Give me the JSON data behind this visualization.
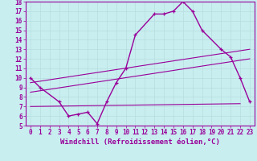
{
  "xlabel": "Windchill (Refroidissement éolien,°C)",
  "bg_color": "#c8eef0",
  "line_color": "#990099",
  "grid_color": "#b8dde0",
  "xlim": [
    -0.5,
    23.5
  ],
  "ylim": [
    5,
    18
  ],
  "xticks": [
    0,
    1,
    2,
    3,
    4,
    5,
    6,
    7,
    8,
    9,
    10,
    11,
    12,
    13,
    14,
    15,
    16,
    17,
    18,
    19,
    20,
    21,
    22,
    23
  ],
  "yticks": [
    5,
    6,
    7,
    8,
    9,
    10,
    11,
    12,
    13,
    14,
    15,
    16,
    17,
    18
  ],
  "main_x": [
    0,
    1,
    3,
    4,
    5,
    6,
    7,
    8,
    9,
    10,
    11,
    13,
    14,
    15,
    16,
    17,
    18,
    20,
    21,
    22,
    23
  ],
  "main_y": [
    10,
    9,
    7.5,
    6.0,
    6.2,
    6.4,
    5.2,
    7.5,
    9.5,
    11.0,
    14.5,
    16.7,
    16.7,
    17.0,
    18.0,
    17.0,
    15.0,
    13.0,
    12.2,
    10.0,
    7.5
  ],
  "line2_x": [
    0,
    23
  ],
  "line2_y": [
    9.5,
    13.0
  ],
  "line3_x": [
    0,
    23
  ],
  "line3_y": [
    8.5,
    12.0
  ],
  "line4_x": [
    0,
    22
  ],
  "line4_y": [
    7.0,
    7.3
  ],
  "font_size": 6.5,
  "tick_font_size": 5.5,
  "xlabel_font_size": 6.5
}
